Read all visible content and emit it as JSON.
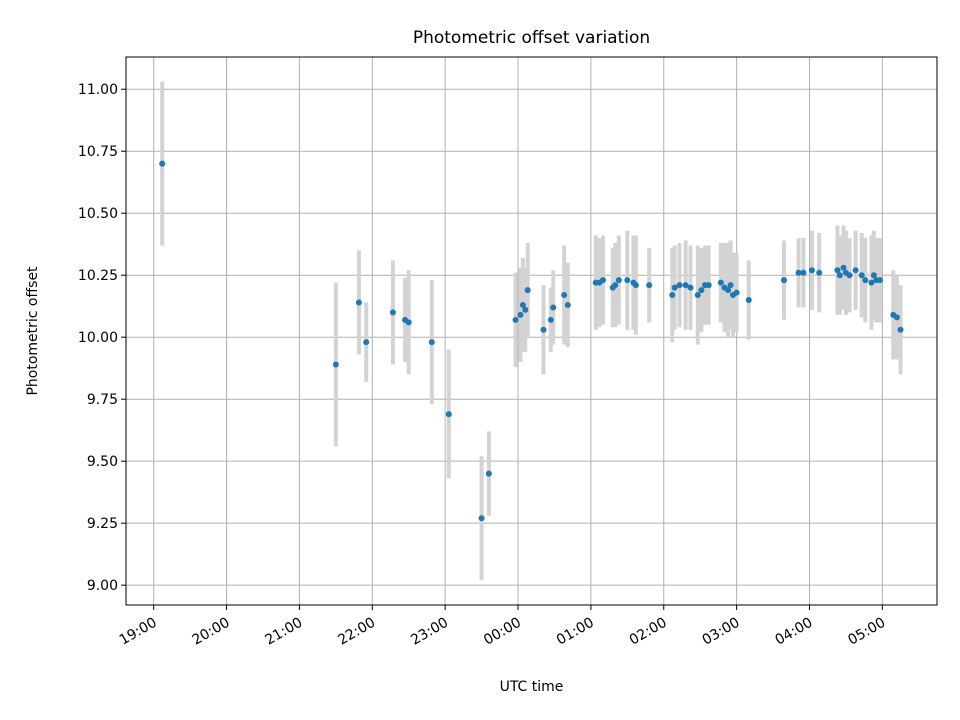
{
  "chart_data": {
    "type": "scatter",
    "title": "Photometric offset variation",
    "xlabel": "UTC time",
    "ylabel": "Photometric offset",
    "x_ticks": [
      "19:00",
      "20:00",
      "21:00",
      "22:00",
      "23:00",
      "00:00",
      "01:00",
      "02:00",
      "03:00",
      "04:00",
      "05:00"
    ],
    "x_tick_hours": [
      19,
      20,
      21,
      22,
      23,
      24,
      25,
      26,
      27,
      28,
      29
    ],
    "xlim_hours": [
      18.62,
      29.75
    ],
    "y_ticks": [
      "9.00",
      "9.25",
      "9.50",
      "9.75",
      "10.00",
      "10.25",
      "10.50",
      "10.75",
      "11.00"
    ],
    "y_tick_values": [
      9.0,
      9.25,
      9.5,
      9.75,
      10.0,
      10.25,
      10.5,
      10.75,
      11.0
    ],
    "ylim": [
      8.92,
      11.13
    ],
    "grid": true,
    "marker_color": "#1f77b4",
    "errorbar_color": "#d3d3d3",
    "series": [
      {
        "time": [
          "19:07",
          "21:30",
          "21:49",
          "21:55",
          "22:17",
          "22:27",
          "22:30",
          "22:49",
          "23:03",
          "23:30",
          "23:36",
          "23:58",
          "00:02",
          "00:04",
          "00:06",
          "00:08",
          "00:21",
          "00:27",
          "00:29",
          "00:38",
          "00:41",
          "01:04",
          "01:07",
          "01:10",
          "01:18",
          "01:20",
          "01:23",
          "01:30",
          "01:35",
          "01:37",
          "01:48",
          "02:07",
          "02:09",
          "02:13",
          "02:18",
          "02:22",
          "02:28",
          "02:31",
          "02:34",
          "02:37",
          "02:47",
          "02:50",
          "02:53",
          "02:55",
          "02:57",
          "03:00",
          "03:10",
          "03:39",
          "03:51",
          "03:55",
          "04:02",
          "04:08",
          "04:23",
          "04:25",
          "04:28",
          "04:30",
          "04:33",
          "04:38",
          "04:43",
          "04:46",
          "04:51",
          "04:53",
          "04:55",
          "04:58",
          "05:09",
          "05:12",
          "05:15"
        ],
        "offset": [
          10.7,
          9.89,
          10.14,
          9.98,
          10.1,
          10.07,
          10.06,
          9.98,
          9.69,
          9.27,
          9.45,
          10.07,
          10.09,
          10.13,
          10.11,
          10.19,
          10.03,
          10.07,
          10.12,
          10.17,
          10.13,
          10.22,
          10.22,
          10.23,
          10.2,
          10.21,
          10.23,
          10.23,
          10.22,
          10.21,
          10.21,
          10.17,
          10.2,
          10.21,
          10.21,
          10.2,
          10.17,
          10.19,
          10.21,
          10.21,
          10.22,
          10.2,
          10.19,
          10.21,
          10.17,
          10.18,
          10.15,
          10.23,
          10.26,
          10.26,
          10.27,
          10.26,
          10.27,
          10.25,
          10.28,
          10.26,
          10.25,
          10.27,
          10.25,
          10.23,
          10.22,
          10.25,
          10.23,
          10.23,
          10.09,
          10.08,
          10.03
        ],
        "error": [
          0.33,
          0.33,
          0.21,
          0.16,
          0.21,
          0.17,
          0.21,
          0.25,
          0.26,
          0.25,
          0.17,
          0.19,
          0.19,
          0.19,
          0.17,
          0.19,
          0.18,
          0.13,
          0.15,
          0.2,
          0.17,
          0.19,
          0.18,
          0.18,
          0.16,
          0.17,
          0.18,
          0.2,
          0.19,
          0.2,
          0.15,
          0.19,
          0.17,
          0.17,
          0.18,
          0.17,
          0.2,
          0.17,
          0.16,
          0.16,
          0.16,
          0.18,
          0.19,
          0.18,
          0.17,
          0.16,
          0.16,
          0.16,
          0.14,
          0.14,
          0.16,
          0.16,
          0.18,
          0.16,
          0.17,
          0.17,
          0.15,
          0.16,
          0.17,
          0.17,
          0.19,
          0.18,
          0.17,
          0.17,
          0.18,
          0.17,
          0.18
        ]
      }
    ]
  }
}
